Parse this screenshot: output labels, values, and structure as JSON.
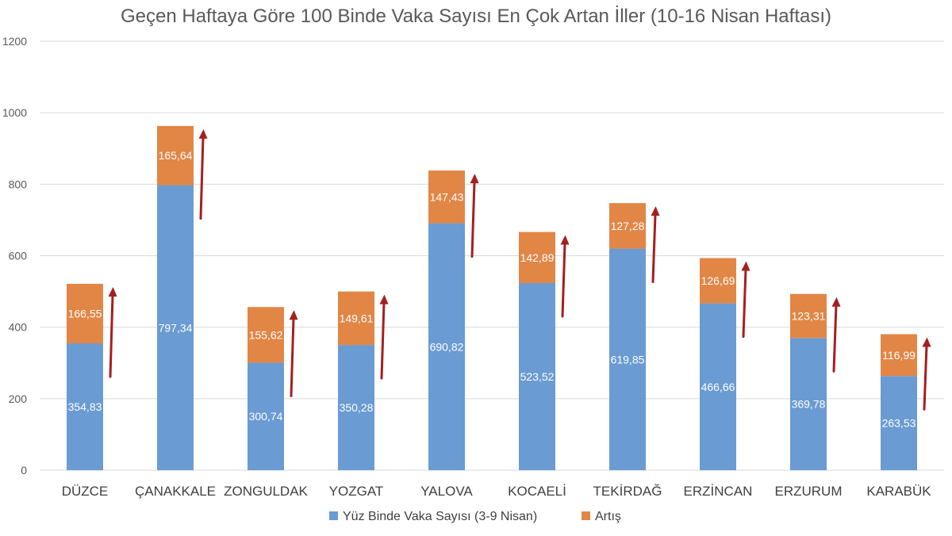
{
  "chart_data": {
    "type": "bar",
    "stacked": true,
    "title": "Geçen Haftaya Göre 100 Binde Vaka Sayısı En Çok Artan İller (10-16 Nisan Haftası)",
    "xlabel": "",
    "ylabel": "",
    "ylim": [
      0,
      1200
    ],
    "yticks": [
      0,
      200,
      400,
      600,
      800,
      1000,
      1200
    ],
    "ytick_labels": [
      "0",
      "200",
      "400",
      "600",
      "800",
      "1000",
      "1200"
    ],
    "grid": true,
    "legend_position": "bottom",
    "categories": [
      "DÜZCE",
      "ÇANAKKALE",
      "ZONGULDAK",
      "YOZGAT",
      "YALOVA",
      "KOCAELİ",
      "TEKİRDAĞ",
      "ERZİNCAN",
      "ERZURUM",
      "KARABÜK"
    ],
    "series": [
      {
        "name": "Yüz Binde Vaka Sayısı (3-9 Nisan)",
        "color": "#6a9bd2",
        "values": [
          354.83,
          797.34,
          300.74,
          350.28,
          690.82,
          523.52,
          619.85,
          466.66,
          369.78,
          263.53
        ],
        "labels": [
          "354,83",
          "797,34",
          "300,74",
          "350,28",
          "690,82",
          "523,52",
          "619,85",
          "466,66",
          "369,78",
          "263,53"
        ]
      },
      {
        "name": "Artış",
        "color": "#e28646",
        "values": [
          166.55,
          165.64,
          155.62,
          149.61,
          147.43,
          142.89,
          127.28,
          126.69,
          123.31,
          116.99
        ],
        "labels": [
          "166,55",
          "165,64",
          "155,62",
          "149,61",
          "147,43",
          "142,89",
          "127,28",
          "126,69",
          "123,31",
          "116,99"
        ]
      }
    ],
    "annotations": [
      {
        "type": "up-arrow",
        "color": "#a51f1f",
        "description": "increase arrow beside each bar"
      }
    ]
  }
}
